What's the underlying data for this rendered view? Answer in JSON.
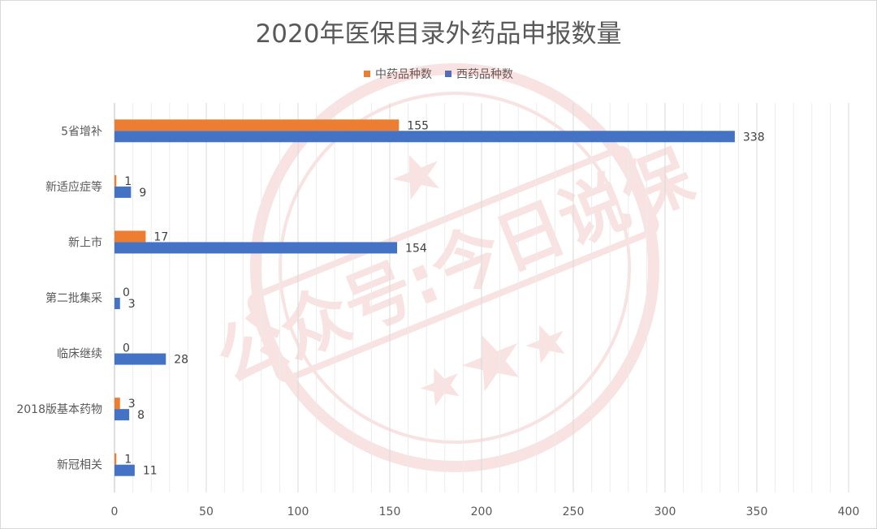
{
  "chart_data": {
    "type": "bar",
    "orientation": "horizontal",
    "title": "2020年医保目录外药品申报数量",
    "categories": [
      "5省增补",
      "新适应症等",
      "新上市",
      "第二批集采",
      "临床继续",
      "2018版基本药物",
      "新冠相关"
    ],
    "series": [
      {
        "name": "中药品种数",
        "color": "#ED7D31",
        "values": [
          155,
          1,
          17,
          0,
          0,
          3,
          1
        ]
      },
      {
        "name": "西药品种数",
        "color": "#4472C4",
        "values": [
          338,
          9,
          154,
          3,
          28,
          8,
          11
        ]
      }
    ],
    "xlim": [
      0,
      400
    ],
    "xticks": [
      0,
      50,
      100,
      150,
      200,
      250,
      300,
      350,
      400
    ],
    "grid": true,
    "legend_position": "top"
  },
  "watermark": {
    "text": "公众号:今日说保"
  }
}
